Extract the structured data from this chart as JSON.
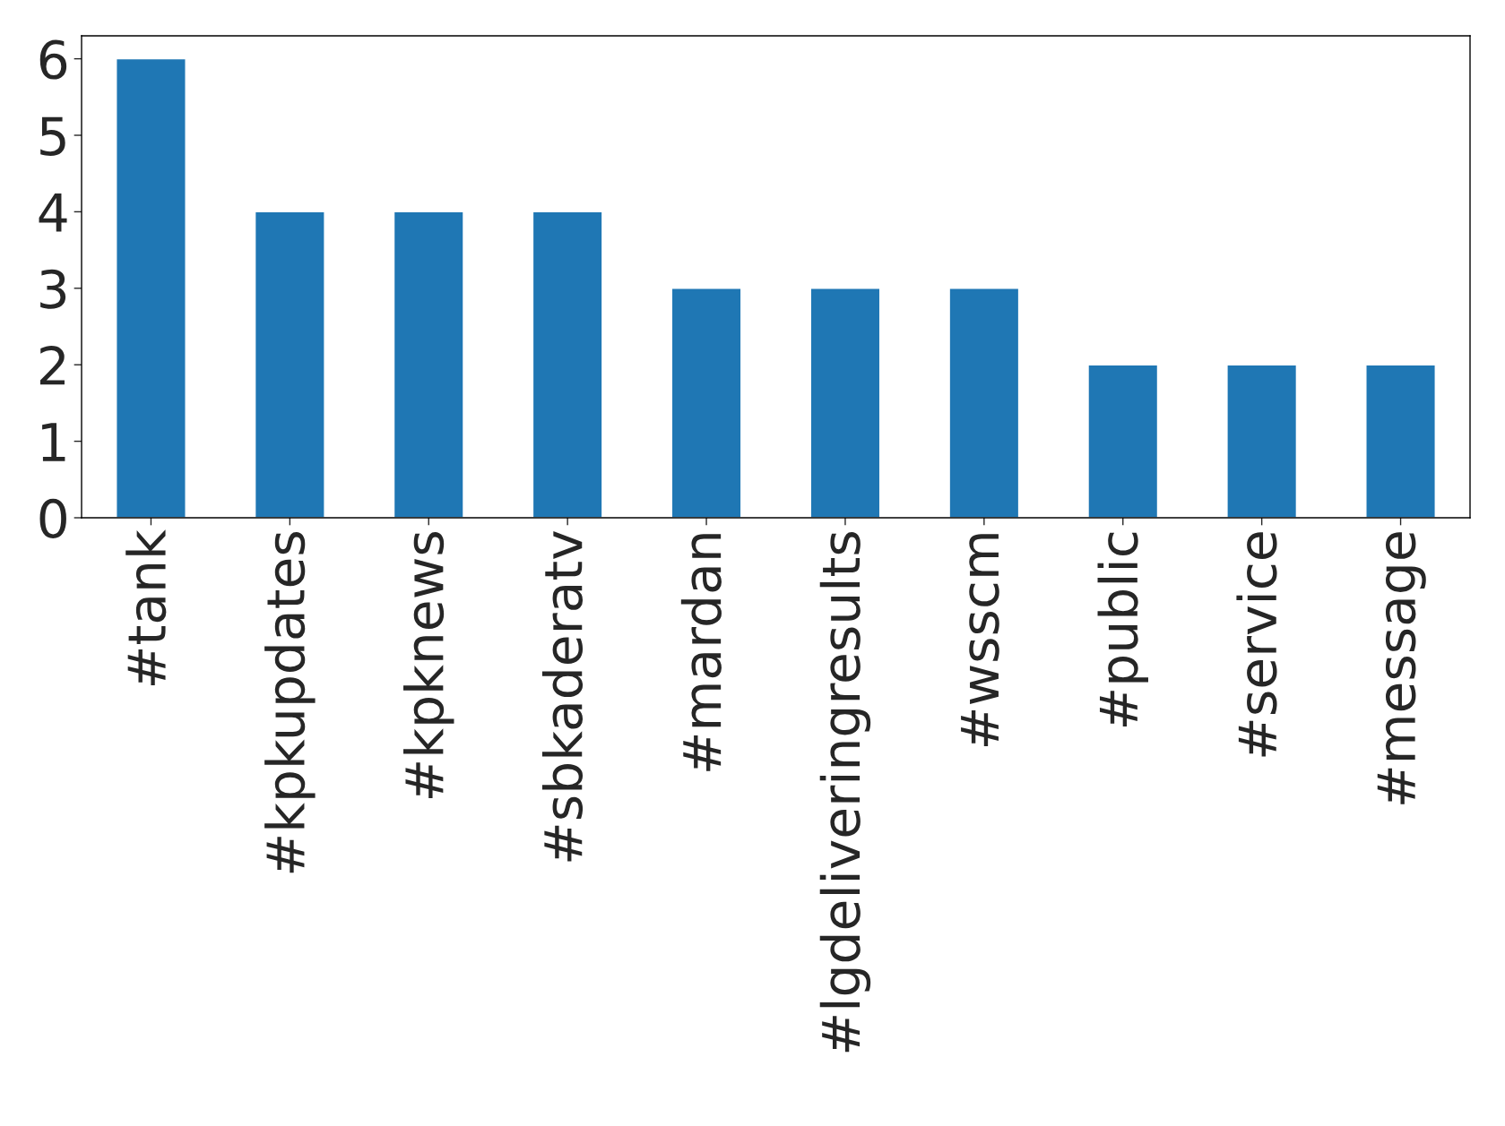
{
  "chart_data": {
    "type": "bar",
    "categories": [
      "#tank",
      "#kpkupdates",
      "#kpknews",
      "#sbkaderatv",
      "#mardan",
      "#lgdeliveringresults",
      "#wsscm",
      "#public",
      "#service",
      "#message"
    ],
    "values": [
      6,
      4,
      4,
      4,
      3,
      3,
      3,
      2,
      2,
      2
    ],
    "color": "#1f77b4",
    "ylim": [
      0,
      6.3
    ],
    "yticks": [
      0,
      1,
      2,
      3,
      4,
      5,
      6
    ],
    "grid": false
  }
}
